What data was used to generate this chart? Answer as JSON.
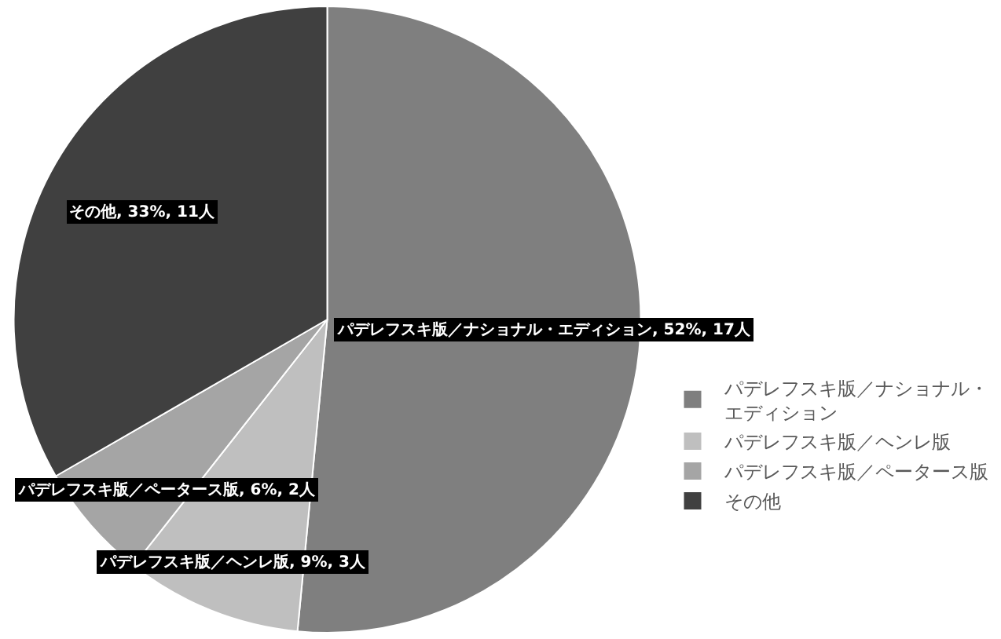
{
  "chart_data": {
    "type": "pie",
    "categories": [
      "パデレフスキ版／ナショナル・エディション",
      "パデレフスキ版／ヘンレ版",
      "パデレフスキ版／ペータース版",
      "その他"
    ],
    "values": [
      17,
      3,
      2,
      11
    ],
    "colors": [
      "#7f7f7f",
      "#bfbfbf",
      "#a5a5a5",
      "#404040"
    ],
    "value_labels": [
      "パデレフスキ版／ナショナル・エディション, 52%, 17人",
      "パデレフスキ版／ヘンレ版, 9%, 3人",
      "パデレフスキ版／ペータース版, 6%, 2人",
      "その他, 33%, 11人"
    ],
    "legend": "right"
  }
}
